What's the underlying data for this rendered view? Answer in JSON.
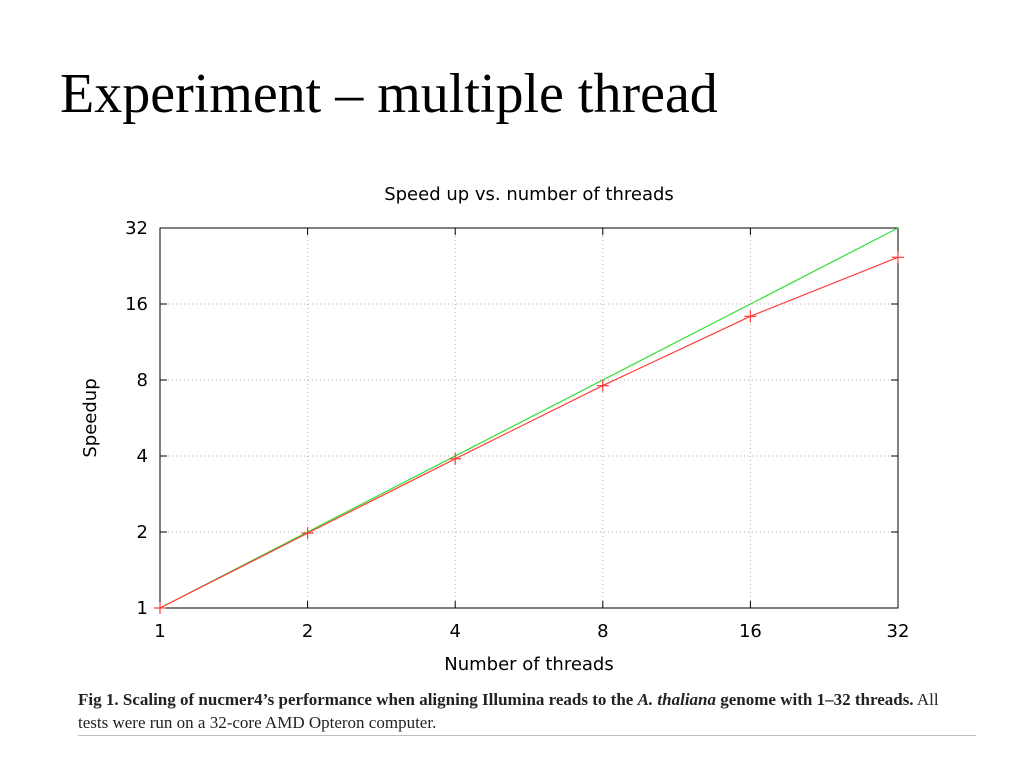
{
  "slide": {
    "title": "Experiment – multiple thread"
  },
  "caption": {
    "fig_label": "Fig 1.",
    "bold_part1": "Scaling of nucmer4’s performance when aligning Illumina reads to the",
    "species_abbrev": "A.",
    "species_name": "thaliana",
    "bold_part2": "genome with 1–32 threads.",
    "normal_part": "All tests were run on a 32-core AMD Opteron computer."
  },
  "colors": {
    "measured": "#ff3b3b",
    "ideal": "#33dd33",
    "grid": "#b0b0b0",
    "frame": "#000000"
  },
  "chart_data": {
    "type": "line",
    "title": "Speed up vs. number of threads",
    "xlabel": "Number of threads",
    "ylabel": "Speedup",
    "xscale": "log2",
    "yscale": "log2",
    "xlim": [
      1,
      32
    ],
    "ylim": [
      1,
      32
    ],
    "xticks": [
      1,
      2,
      4,
      8,
      16,
      32
    ],
    "xtick_labels": [
      "1",
      "2",
      "4",
      "8",
      "16",
      "32"
    ],
    "yticks": [
      1,
      2,
      4,
      8,
      16,
      32
    ],
    "ytick_labels": [
      "1",
      "2",
      "4",
      "8",
      "16",
      "32"
    ],
    "grid": true,
    "series": [
      {
        "color_key": "ideal",
        "marker": "none",
        "x": [
          1,
          32
        ],
        "y": [
          1,
          32
        ]
      },
      {
        "color_key": "measured",
        "marker": "plus",
        "x": [
          1,
          2,
          4,
          8,
          16,
          32
        ],
        "y": [
          1,
          1.98,
          3.9,
          7.6,
          14.3,
          24.5
        ]
      }
    ]
  }
}
